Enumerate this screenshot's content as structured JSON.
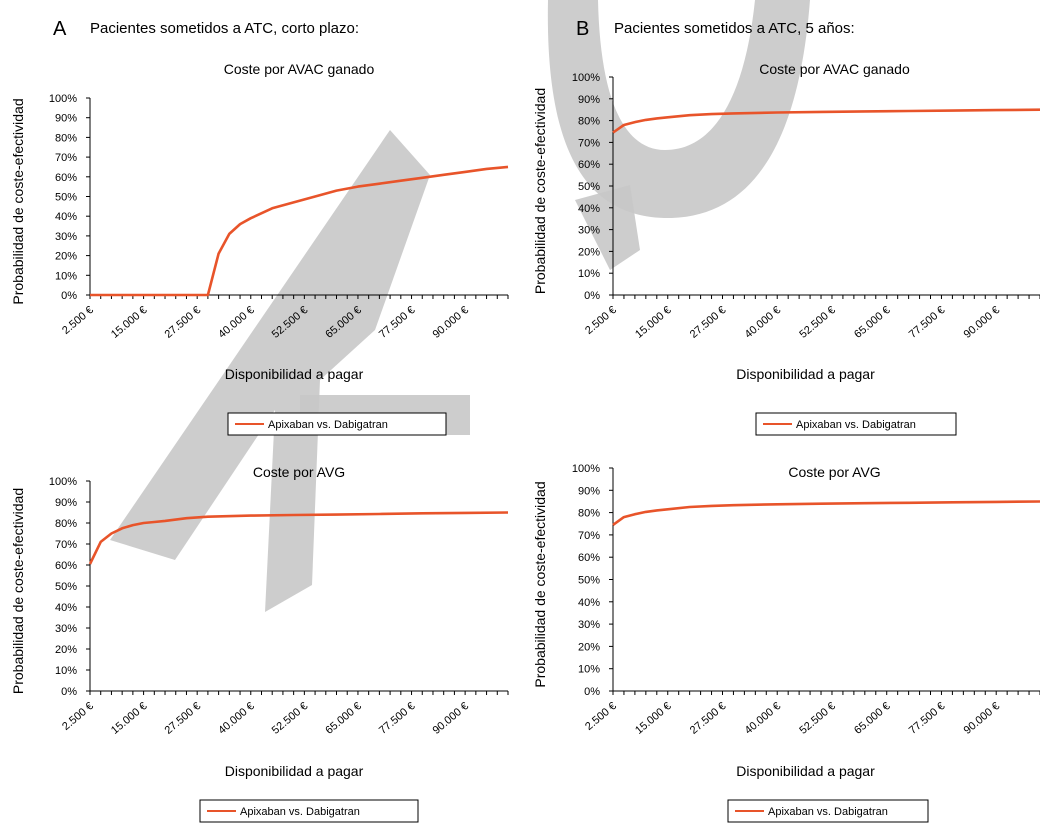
{
  "panels": [
    {
      "letter": "A",
      "title": "Pacientes sometidos a ATC, corto plazo:"
    },
    {
      "letter": "B",
      "title": "Pacientes sometidos a ATC, 5 años:"
    }
  ],
  "watermark": "AU",
  "chart_data": [
    {
      "type": "line",
      "panel": "A",
      "title": "Coste por AVAC ganado",
      "xlabel": "Disponibilidad a pagar",
      "ylabel": "Probabilidad de coste-efectividad",
      "yticks": [
        "0%",
        "10%",
        "20%",
        "30%",
        "40%",
        "50%",
        "60%",
        "70%",
        "80%",
        "90%",
        "100%"
      ],
      "ylim": [
        0,
        100
      ],
      "xlim": [
        2500,
        100000
      ],
      "xticks": [
        2500,
        15000,
        27500,
        40000,
        52500,
        65000,
        77500,
        90000
      ],
      "xtick_labels": [
        "2.500 €",
        "15.000 €",
        "27.500 €",
        "40.000 €",
        "52.500 €",
        "65.000 €",
        "77.500 €",
        "90.000 €"
      ],
      "legend": "bottom",
      "color": "#e8542a",
      "series": [
        {
          "name": "Apixaban vs. Dabigatran",
          "x": [
            2500,
            12500,
            20000,
            27500,
            30000,
            32500,
            35000,
            37500,
            40000,
            45000,
            50000,
            55000,
            60000,
            65000,
            70000,
            75000,
            80000,
            85000,
            90000,
            95000,
            100000
          ],
          "y": [
            0,
            0,
            0,
            0,
            0,
            21,
            31,
            36,
            39,
            44,
            47,
            50,
            53,
            55,
            56.5,
            58,
            59.5,
            61,
            62.5,
            64,
            65
          ]
        }
      ]
    },
    {
      "type": "line",
      "panel": "B",
      "title": "Coste por AVAC ganado",
      "xlabel": "Disponibilidad a pagar",
      "ylabel": "Probabilidad de coste-efectividad",
      "yticks": [
        "0%",
        "10%",
        "20%",
        "30%",
        "40%",
        "50%",
        "60%",
        "70%",
        "80%",
        "90%",
        "100%"
      ],
      "ylim": [
        0,
        100
      ],
      "xlim": [
        2500,
        100000
      ],
      "xticks": [
        2500,
        15000,
        27500,
        40000,
        52500,
        65000,
        77500,
        90000
      ],
      "xtick_labels": [
        "2.500 €",
        "15.000 €",
        "27.500 €",
        "40.000 €",
        "52.500 €",
        "65.000 €",
        "77.500 €",
        "90.000 €"
      ],
      "legend": "bottom",
      "color": "#e8542a",
      "series": [
        {
          "name": "Apixaban vs. Dabigatran",
          "x": [
            2500,
            5000,
            7500,
            10000,
            12500,
            15000,
            20000,
            25000,
            30000,
            40000,
            50000,
            60000,
            70000,
            80000,
            90000,
            100000
          ],
          "y": [
            74.5,
            78,
            79.3,
            80.3,
            81,
            81.5,
            82.5,
            83,
            83.3,
            83.7,
            84,
            84.2,
            84.4,
            84.6,
            84.8,
            85
          ]
        }
      ]
    },
    {
      "type": "line",
      "panel": "A",
      "title": "Coste por AVG",
      "xlabel": "Disponibilidad a pagar",
      "ylabel": "Probabilidad de coste-efectividad",
      "yticks": [
        "0%",
        "10%",
        "20%",
        "30%",
        "40%",
        "50%",
        "60%",
        "70%",
        "80%",
        "90%",
        "100%"
      ],
      "ylim": [
        0,
        100
      ],
      "xlim": [
        2500,
        100000
      ],
      "xticks": [
        2500,
        15000,
        27500,
        40000,
        52500,
        65000,
        77500,
        90000
      ],
      "xtick_labels": [
        "2.500 €",
        "15.000 €",
        "27.500 €",
        "40.000 €",
        "52.500 €",
        "65.000 €",
        "77.500 €",
        "90.000 €"
      ],
      "legend": "bottom",
      "color": "#e8542a",
      "series": [
        {
          "name": "Apixaban vs. Dabigatran",
          "x": [
            2500,
            5000,
            7500,
            10000,
            12500,
            15000,
            17500,
            20000,
            25000,
            30000,
            40000,
            50000,
            60000,
            70000,
            80000,
            90000,
            100000
          ],
          "y": [
            60.5,
            71,
            75,
            77.5,
            79,
            80,
            80.5,
            81,
            82.3,
            83,
            83.5,
            83.8,
            84,
            84.3,
            84.6,
            84.8,
            85
          ]
        }
      ]
    },
    {
      "type": "line",
      "panel": "B",
      "title": "Coste por AVG",
      "xlabel": "Disponibilidad a pagar",
      "ylabel": "Probabilidad de coste-efectividad",
      "yticks": [
        "0%",
        "10%",
        "20%",
        "30%",
        "40%",
        "50%",
        "60%",
        "70%",
        "80%",
        "90%",
        "100%"
      ],
      "ylim": [
        0,
        100
      ],
      "xlim": [
        2500,
        100000
      ],
      "xticks": [
        2500,
        15000,
        27500,
        40000,
        52500,
        65000,
        77500,
        90000
      ],
      "xtick_labels": [
        "2.500 €",
        "15.000 €",
        "27.500 €",
        "40.000 €",
        "52.500 €",
        "65.000 €",
        "77.500 €",
        "90.000 €"
      ],
      "legend": "bottom",
      "color": "#e8542a",
      "series": [
        {
          "name": "Apixaban vs. Dabigatran",
          "x": [
            2500,
            5000,
            7500,
            10000,
            12500,
            15000,
            20000,
            25000,
            30000,
            40000,
            50000,
            60000,
            70000,
            80000,
            90000,
            100000
          ],
          "y": [
            74.5,
            78,
            79.3,
            80.3,
            81,
            81.5,
            82.5,
            83,
            83.3,
            83.7,
            84,
            84.2,
            84.4,
            84.6,
            84.8,
            85
          ]
        }
      ]
    }
  ]
}
